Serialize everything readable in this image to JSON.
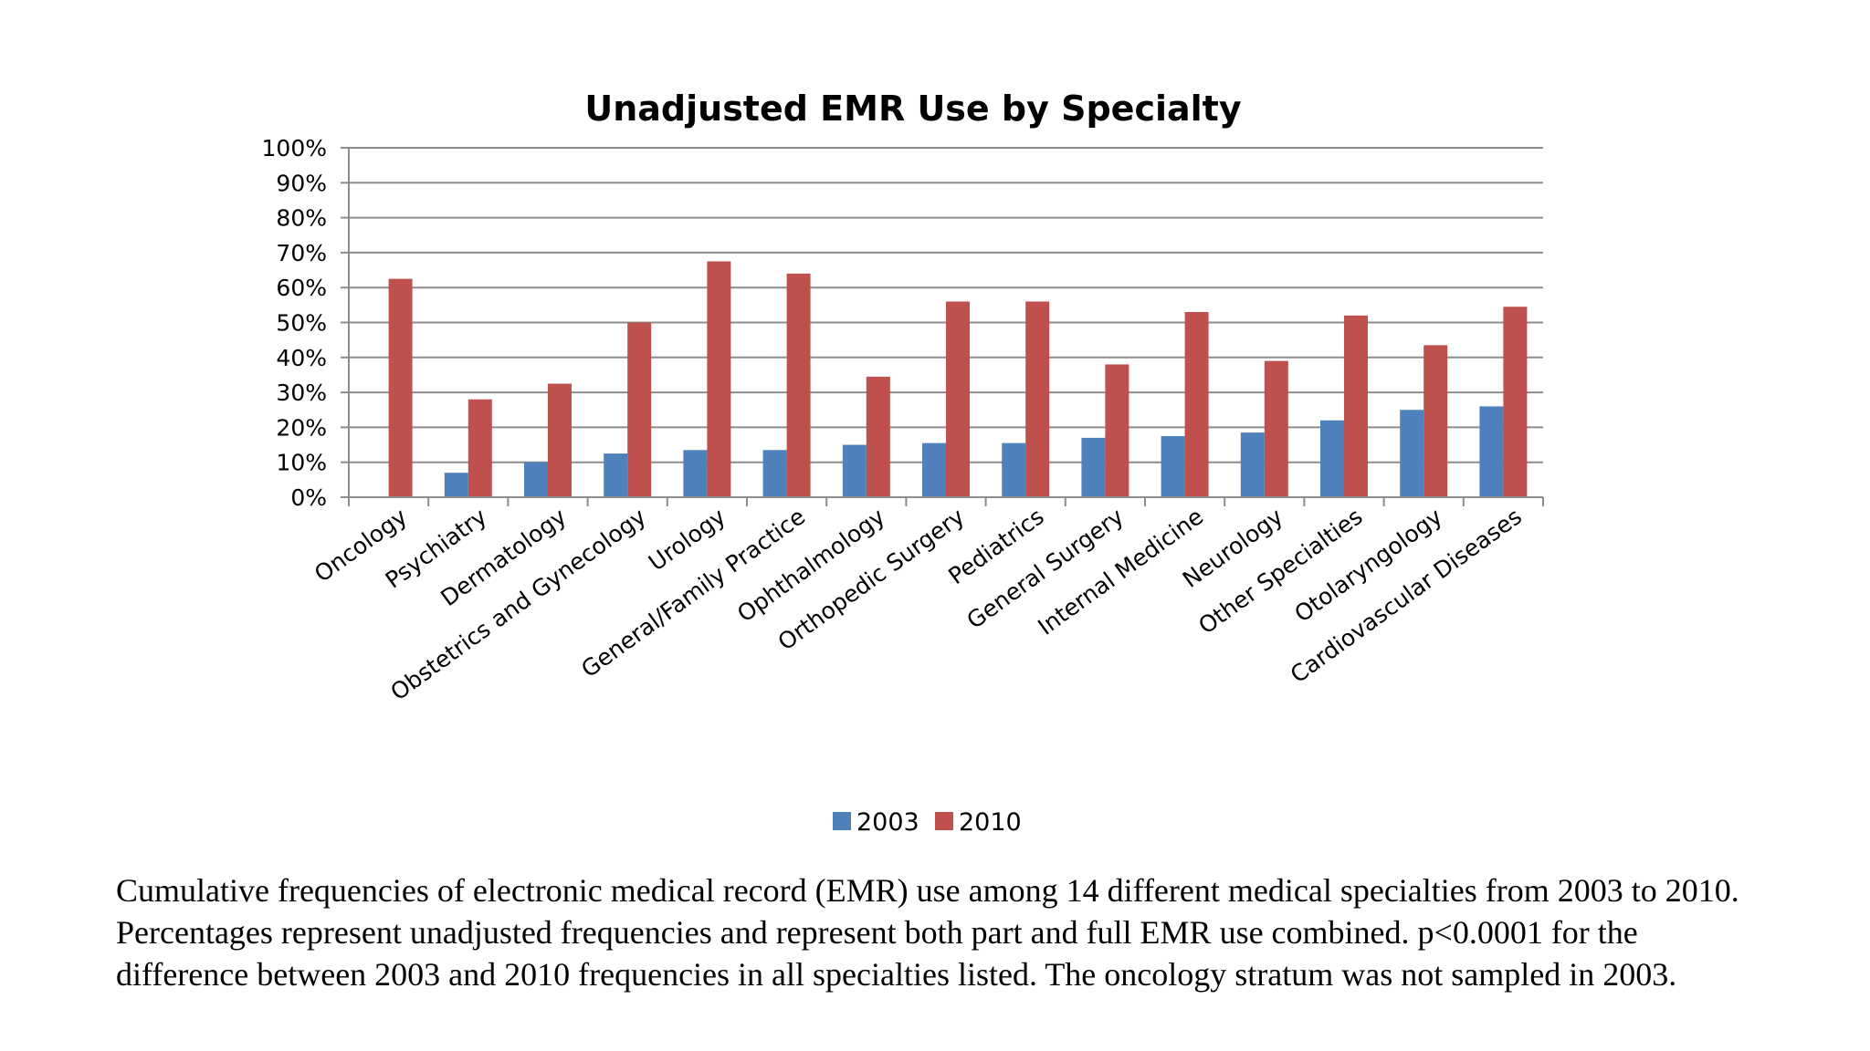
{
  "chart_data": {
    "type": "bar",
    "title": "Unadjusted EMR Use by Specialty",
    "xlabel": "",
    "ylabel": "",
    "ylim": [
      0,
      100
    ],
    "yticks": [
      "0%",
      "10%",
      "20%",
      "30%",
      "40%",
      "50%",
      "60%",
      "70%",
      "80%",
      "90%",
      "100%"
    ],
    "grid": true,
    "legend": "bottom",
    "categories": [
      "Oncology",
      "Psychiatry",
      "Dermatology",
      "Obstetrics and Gynecology",
      "Urology",
      "General/Family Practice",
      "Ophthalmology",
      "Orthopedic Surgery",
      "Pediatrics",
      "General Surgery",
      "Internal Medicine",
      "Neurology",
      "Other Specialties",
      "Otolaryngology",
      "Cardiovascular Diseases"
    ],
    "series": [
      {
        "name": "2003",
        "color": "#4f81bd",
        "values": [
          null,
          7,
          10,
          12.5,
          13.5,
          13.5,
          15,
          15.5,
          15.5,
          17,
          17.5,
          18.5,
          22,
          25,
          26
        ]
      },
      {
        "name": "2010",
        "color": "#c0504d",
        "values": [
          62.5,
          28,
          32.5,
          50,
          67.5,
          64,
          34.5,
          56,
          56,
          38,
          53,
          39,
          52,
          43.5,
          54.5
        ]
      }
    ]
  },
  "caption": "Cumulative frequencies of electronic medical record (EMR) use among 14 different medical specialties from 2003 to 2010. Percentages represent unadjusted frequencies and represent both part and full EMR use combined. p<0.0001 for the difference between 2003 and 2010 frequencies in all specialties listed. The oncology stratum was not sampled in 2003."
}
